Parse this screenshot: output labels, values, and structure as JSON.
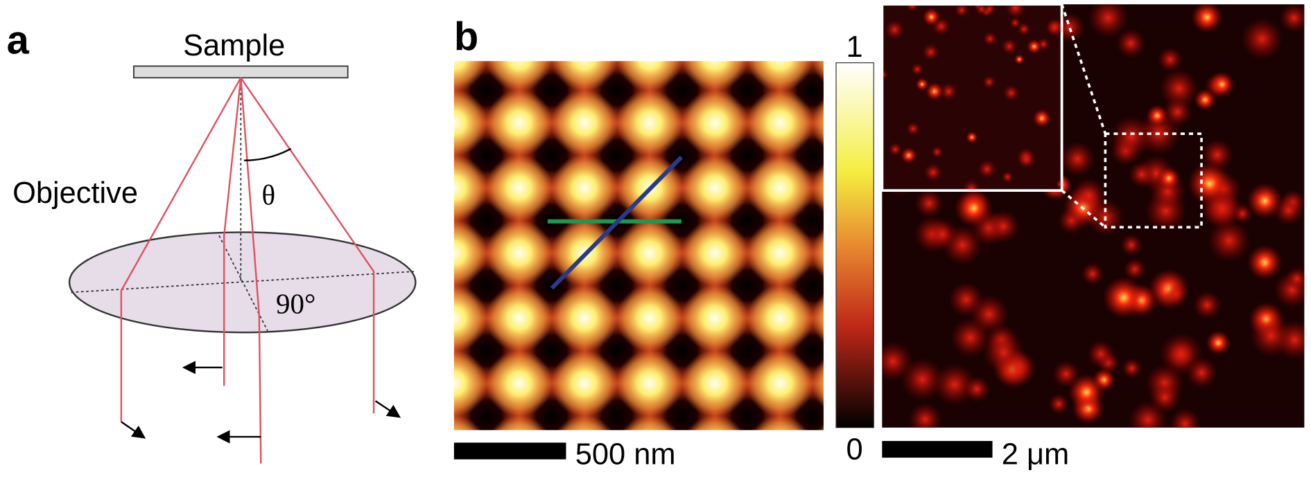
{
  "panel_a": {
    "label": "a",
    "sample": "Sample",
    "objective": "Objective",
    "theta": "θ",
    "angle": "90°"
  },
  "panel_b": {
    "label": "b",
    "colorbar_max": "1",
    "colorbar_min": "0",
    "scale_bar": "500 nm"
  },
  "panel_c": {
    "scale_bar": "2 μm"
  }
}
